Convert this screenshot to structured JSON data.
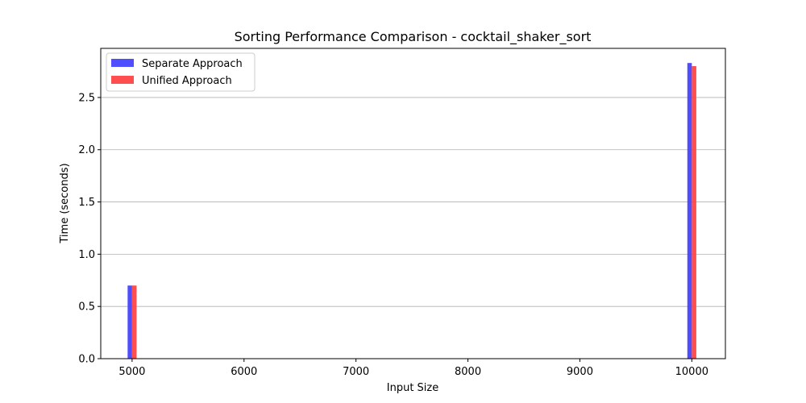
{
  "chart_data": {
    "type": "bar",
    "title": "Sorting Performance Comparison - cocktail_shaker_sort",
    "xlabel": "Input Size",
    "ylabel": "Time (seconds)",
    "x": [
      5000,
      10000
    ],
    "series": [
      {
        "name": "Separate Approach",
        "values": [
          0.7,
          2.83
        ],
        "color": "#4444ff"
      },
      {
        "name": "Unified Approach",
        "values": [
          0.7,
          2.8
        ],
        "color": "#ff4444"
      }
    ],
    "xlim": [
      4720,
      10300
    ],
    "ylim": [
      0,
      2.97
    ],
    "xticks": [
      5000,
      6000,
      7000,
      8000,
      9000,
      10000
    ],
    "yticks": [
      0.0,
      0.5,
      1.0,
      1.5,
      2.0,
      2.5
    ],
    "ytick_labels": [
      "0.0",
      "0.5",
      "1.0",
      "1.5",
      "2.0",
      "2.5"
    ],
    "bar_width": 40,
    "grid": "y",
    "legend_position": "top-left"
  }
}
